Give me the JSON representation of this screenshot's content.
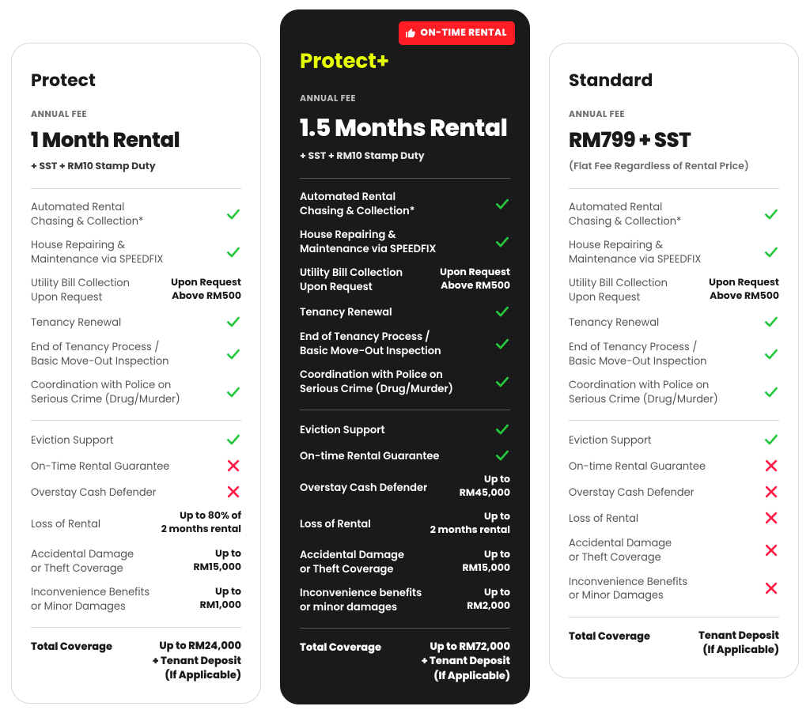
{
  "colors": {
    "check": "#27c840",
    "cross": "#ff1d45",
    "badge_bg": "#ff1d25",
    "accent_yellow": "#e6ff00",
    "dark_bg": "#1a1a1a"
  },
  "badge_text": "ON-TIME RENTAL",
  "feature_groups": [
    [
      "Automated Rental\nChasing & Collection*",
      "House Repairing &\nMaintenance via SPEEDFIX",
      "Utility Bill Collection\nUpon Request",
      "Tenancy Renewal",
      "End of Tenancy Process /\nBasic Move-Out Inspection",
      "Coordination with Police on\nSerious Crime (Drug/Murder)"
    ],
    [
      "Eviction Support",
      "On-Time Rental Guarantee",
      "Overstay Cash Defender",
      "Loss of Rental",
      "Accidental Damage\nor Theft Coverage",
      "Inconvenience Benefits\nor Minor Damages"
    ]
  ],
  "plans": [
    {
      "variant": "light",
      "name": "Protect",
      "fee_label": "ANNUAL FEE",
      "price": "1 Month Rental",
      "price_sub": "+ SST + RM10 Stamp Duty",
      "price_sub_muted": false,
      "badge": false,
      "values": [
        [
          "check",
          "check",
          {
            "text": "Upon Request\nAbove RM500"
          },
          "check",
          "check",
          "check"
        ],
        [
          "check",
          "cross",
          "cross",
          {
            "text": "Up to 80% of\n2 months rental"
          },
          {
            "text": "Up to\nRM15,000"
          },
          {
            "text": "Up to\nRM1,000"
          }
        ]
      ],
      "total_label": "Total Coverage",
      "total_value": "Up to RM24,000\n+ Tenant Deposit\n(If Applicable)"
    },
    {
      "variant": "dark",
      "name": "Protect+",
      "fee_label": "ANNUAL FEE",
      "price": "1.5 Months Rental",
      "price_sub": "+ SST + RM10 Stamp Duty",
      "price_sub_muted": false,
      "badge": true,
      "feature_overrides": {
        "1.1": "On-time Rental Guarantee",
        "1.5": "Inconvenience benefits\nor minor damages"
      },
      "values": [
        [
          "check",
          "check",
          {
            "text": "Upon Request\nAbove RM500"
          },
          "check",
          "check",
          "check"
        ],
        [
          "check",
          "check",
          {
            "text": "Up to\nRM45,000"
          },
          {
            "text": "Up to\n2 months rental"
          },
          {
            "text": "Up to\nRM15,000"
          },
          {
            "text": "Up to\nRM2,000"
          }
        ]
      ],
      "total_label": "Total Coverage",
      "total_value": "Up to RM72,000\n+ Tenant Deposit\n(If Applicable)"
    },
    {
      "variant": "light",
      "name": "Standard",
      "fee_label": "ANNUAL FEE",
      "price": "RM799 + SST",
      "price_sub": "(Flat Fee Regardless of Rental Price)",
      "price_sub_muted": true,
      "badge": false,
      "feature_overrides": {
        "1.1": "On-time Rental Guarantee"
      },
      "values": [
        [
          "check",
          "check",
          {
            "text": "Upon Request\nAbove RM500"
          },
          "check",
          "check",
          "check"
        ],
        [
          "check",
          "cross",
          "cross",
          "cross",
          "cross",
          "cross"
        ]
      ],
      "total_label": "Total Coverage",
      "total_value": "Tenant Deposit\n(If Applicable)"
    }
  ]
}
